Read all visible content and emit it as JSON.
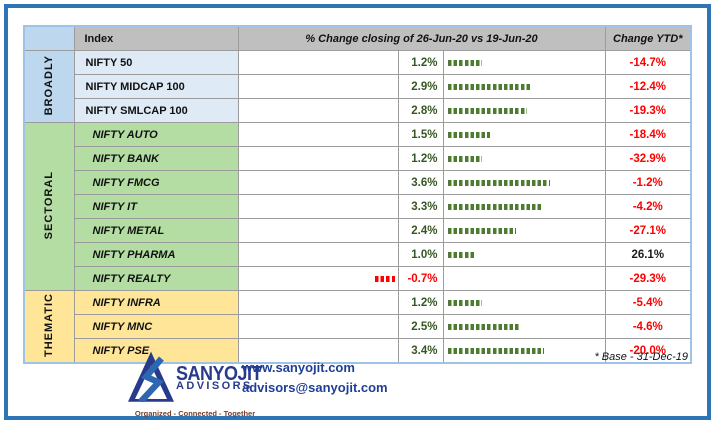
{
  "colors": {
    "page_border": "#2E75B6",
    "table_border": "#9DC3E6",
    "grid": "#9C9C9C",
    "header_bg": "#BFBFBF",
    "broadly_cat": "#BDD7EE",
    "broadly_row": "#DEEAF6",
    "sectoral": "#B3DDA2",
    "thematic": "#FFE598",
    "bar_green": "#4E7B2F",
    "neg_red": "#FF0000",
    "value_green": "#375623",
    "navy": "#283B8B",
    "link_blue": "#1F3F97",
    "tagline": "#7A3B2A"
  },
  "table": {
    "headers": {
      "index": "Index",
      "change": "% Change closing of 26-Jun-20 vs 19-Jun-20",
      "ytd": "Change YTD*"
    },
    "groups": [
      {
        "name": "BROADLY",
        "rows": [
          {
            "index": "NIFTY 50",
            "change": 1.2,
            "change_label": "1.2%",
            "ytd": "-14.7%"
          },
          {
            "index": "NIFTY MIDCAP 100",
            "change": 2.9,
            "change_label": "2.9%",
            "ytd": "-12.4%"
          },
          {
            "index": "NIFTY SMLCAP 100",
            "change": 2.8,
            "change_label": "2.8%",
            "ytd": "-19.3%"
          }
        ]
      },
      {
        "name": "SECTORAL",
        "rows": [
          {
            "index": "NIFTY AUTO",
            "change": 1.5,
            "change_label": "1.5%",
            "ytd": "-18.4%"
          },
          {
            "index": "NIFTY BANK",
            "change": 1.2,
            "change_label": "1.2%",
            "ytd": "-32.9%"
          },
          {
            "index": "NIFTY FMCG",
            "change": 3.6,
            "change_label": "3.6%",
            "ytd": "-1.2%"
          },
          {
            "index": "NIFTY IT",
            "change": 3.3,
            "change_label": "3.3%",
            "ytd": "-4.2%"
          },
          {
            "index": "NIFTY METAL",
            "change": 2.4,
            "change_label": "2.4%",
            "ytd": "-27.1%"
          },
          {
            "index": "NIFTY PHARMA",
            "change": 1.0,
            "change_label": "1.0%",
            "ytd": "26.1%"
          },
          {
            "index": "NIFTY REALTY",
            "change": -0.7,
            "change_label": "-0.7%",
            "ytd": "-29.3%"
          }
        ]
      },
      {
        "name": "THEMATIC",
        "rows": [
          {
            "index": "NIFTY INFRA",
            "change": 1.2,
            "change_label": "1.2%",
            "ytd": "-5.4%"
          },
          {
            "index": "NIFTY MNC",
            "change": 2.5,
            "change_label": "2.5%",
            "ytd": "-4.6%"
          },
          {
            "index": "NIFTY PSE",
            "change": 3.4,
            "change_label": "3.4%",
            "ytd": "-20.0%"
          }
        ]
      }
    ]
  },
  "footer": {
    "footnote": "* Base - 31-Dec-19",
    "logo_name": "SANYOJIT",
    "logo_sub": "ADVISORS",
    "tagline": "Organized - Connected - Together",
    "website": "www.sanyojit.com",
    "email": "advisors@sanyojit.com"
  },
  "chart_data": {
    "type": "bar",
    "title": "% Change closing of 26-Jun-20 vs 19-Jun-20",
    "categories": [
      "NIFTY 50",
      "NIFTY MIDCAP 100",
      "NIFTY SMLCAP 100",
      "NIFTY AUTO",
      "NIFTY BANK",
      "NIFTY FMCG",
      "NIFTY IT",
      "NIFTY METAL",
      "NIFTY PHARMA",
      "NIFTY REALTY",
      "NIFTY INFRA",
      "NIFTY MNC",
      "NIFTY PSE"
    ],
    "group_of": [
      "BROADLY",
      "BROADLY",
      "BROADLY",
      "SECTORAL",
      "SECTORAL",
      "SECTORAL",
      "SECTORAL",
      "SECTORAL",
      "SECTORAL",
      "SECTORAL",
      "THEMATIC",
      "THEMATIC",
      "THEMATIC"
    ],
    "series": [
      {
        "name": "% Change closing of 26-Jun-20 vs 19-Jun-20",
        "values": [
          1.2,
          2.9,
          2.8,
          1.5,
          1.2,
          3.6,
          3.3,
          2.4,
          1.0,
          -0.7,
          1.2,
          2.5,
          3.4
        ]
      },
      {
        "name": "Change YTD*",
        "values": [
          -14.7,
          -12.4,
          -19.3,
          -18.4,
          -32.9,
          -1.2,
          -4.2,
          -27.1,
          26.1,
          -29.3,
          -5.4,
          -4.6,
          -20.0
        ]
      }
    ],
    "note": "* Base - 31-Dec-19",
    "bar_style": "dashed in-cell data bars, green positive / red negative",
    "legend_position": "none",
    "grid": false
  }
}
